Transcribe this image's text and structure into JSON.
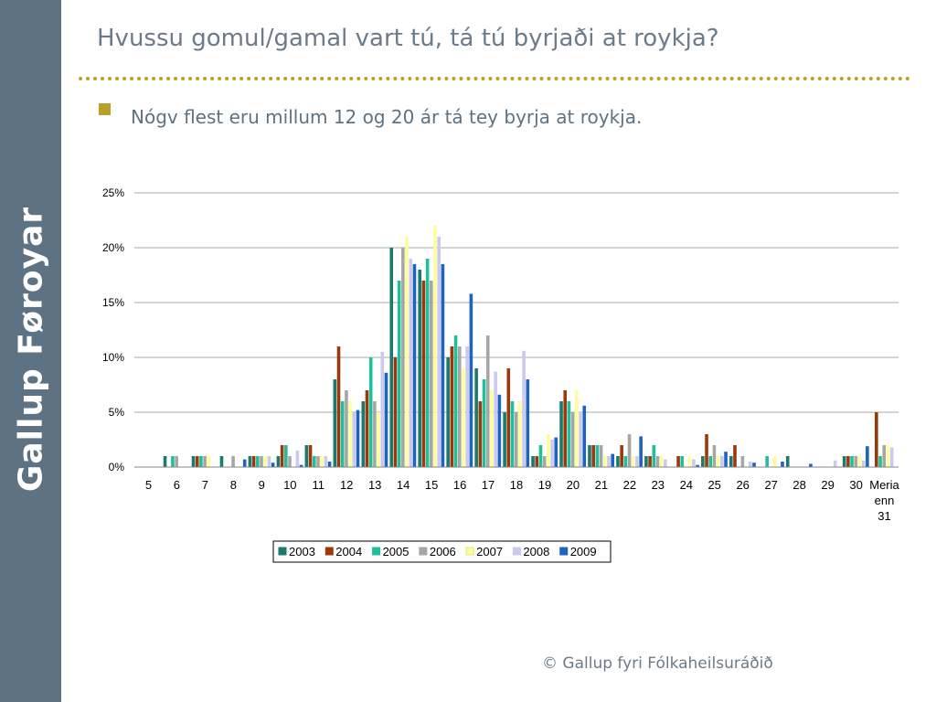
{
  "sidebar": {
    "brand": "Gallup Føroyar"
  },
  "slide": {
    "title": "Hvussu gomul/gamal vart tú, tá tú byrjaði at roykja?",
    "bullet": "Nógv flest eru millum 12 og 20 ár tá tey byrja at roykja.",
    "footer": "© Gallup fyri Fólkaheilsuráðið"
  },
  "colors": {
    "sidebar_bg": "#5d7282",
    "accent": "#b7a128",
    "title_text": "#6b7b8a"
  },
  "chart_data": {
    "type": "bar",
    "categories": [
      "5",
      "6",
      "7",
      "8",
      "9",
      "10",
      "11",
      "12",
      "13",
      "14",
      "15",
      "16",
      "17",
      "18",
      "19",
      "20",
      "21",
      "22",
      "23",
      "24",
      "25",
      "26",
      "27",
      "28",
      "29",
      "30",
      "Meria enn 31"
    ],
    "category_lines": [
      [
        "5"
      ],
      [
        "6"
      ],
      [
        "7"
      ],
      [
        "8"
      ],
      [
        "9"
      ],
      [
        "10"
      ],
      [
        "11"
      ],
      [
        "12"
      ],
      [
        "13"
      ],
      [
        "14"
      ],
      [
        "15"
      ],
      [
        "16"
      ],
      [
        "17"
      ],
      [
        "18"
      ],
      [
        "19"
      ],
      [
        "20"
      ],
      [
        "21"
      ],
      [
        "22"
      ],
      [
        "23"
      ],
      [
        "24"
      ],
      [
        "25"
      ],
      [
        "26"
      ],
      [
        "27"
      ],
      [
        "28"
      ],
      [
        "29"
      ],
      [
        "30"
      ],
      [
        "Meria",
        "enn",
        "31"
      ]
    ],
    "ylim": [
      0,
      25
    ],
    "y_ticks": [
      0,
      5,
      10,
      15,
      20,
      25
    ],
    "y_tick_labels": [
      "0%",
      "5%",
      "10%",
      "15%",
      "20%",
      "25%"
    ],
    "grid": true,
    "legend_position": "bottom",
    "series": [
      {
        "name": "2003",
        "color": "#1a7a6e",
        "values": [
          0,
          1,
          1,
          1,
          1,
          1,
          2,
          8,
          6,
          20,
          18,
          10,
          9,
          5,
          1,
          6,
          2,
          1,
          1,
          0,
          1,
          1,
          0,
          1,
          0,
          1,
          0
        ]
      },
      {
        "name": "2004",
        "color": "#9a3a0c",
        "values": [
          0,
          0,
          1,
          0,
          1,
          2,
          2,
          11,
          7,
          10,
          17,
          11,
          6,
          9,
          1,
          7,
          2,
          2,
          1,
          1,
          3,
          2,
          0,
          0,
          0,
          1,
          5
        ]
      },
      {
        "name": "2005",
        "color": "#1fbf99",
        "values": [
          0,
          1,
          1,
          0,
          1,
          2,
          1,
          6,
          10,
          17,
          19,
          12,
          8,
          6,
          2,
          6,
          2,
          1,
          2,
          1,
          1,
          0,
          1,
          0,
          0,
          1,
          1
        ]
      },
      {
        "name": "2006",
        "color": "#a6a6a6",
        "values": [
          0,
          1,
          1,
          1,
          1,
          1,
          1,
          7,
          6,
          20,
          17,
          11,
          12,
          5,
          1,
          5,
          2,
          3,
          1,
          0,
          2,
          1,
          0,
          0,
          0,
          1,
          2
        ]
      },
      {
        "name": "2007",
        "color": "#fdfd9a",
        "values": [
          0,
          0,
          1,
          0,
          1,
          0,
          1,
          6,
          5,
          21,
          22,
          9,
          7,
          6,
          3,
          7,
          1,
          1,
          1,
          1,
          1,
          0,
          1,
          0,
          0,
          1,
          2
        ]
      },
      {
        "name": "2008",
        "color": "#c9c9f2",
        "values": [
          0,
          0,
          0,
          0,
          1,
          1.5,
          1,
          5,
          10.5,
          19,
          21,
          11,
          8.7,
          10.6,
          2.5,
          5,
          1,
          1,
          0.7,
          0.7,
          1,
          0.5,
          0,
          0,
          0.6,
          0.6,
          1.8
        ]
      },
      {
        "name": "2009",
        "color": "#1c63c2",
        "values": [
          0,
          0,
          0,
          0.7,
          0.4,
          0.2,
          0.5,
          5.2,
          8.6,
          18.5,
          18.5,
          15.8,
          6.6,
          8,
          2.7,
          5.6,
          1.2,
          2.8,
          0,
          0.2,
          1.4,
          0.4,
          0.5,
          0.3,
          0,
          1.9,
          0
        ]
      }
    ]
  }
}
